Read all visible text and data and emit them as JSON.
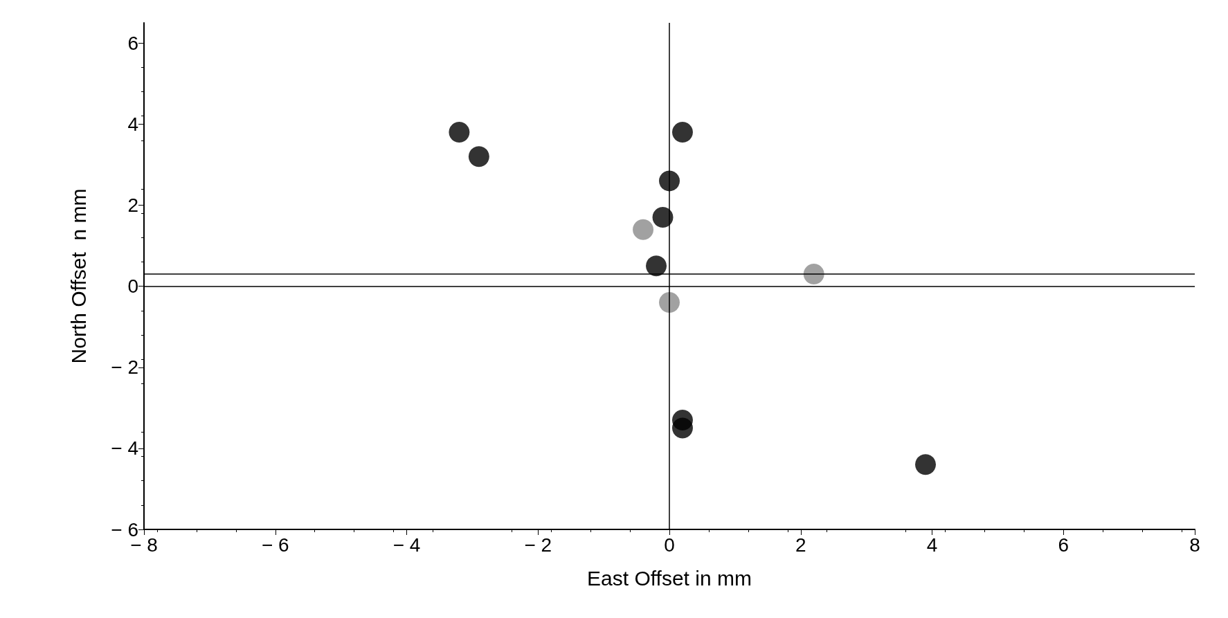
{
  "chart_data": {
    "type": "scatter",
    "xlabel": "East Offset in mm",
    "ylabel": "North Offset  n mm",
    "xlim": [
      -8,
      8
    ],
    "ylim": [
      -6,
      6.5
    ],
    "xticks": [
      -8,
      -6,
      -4,
      -2,
      0,
      2,
      4,
      6,
      8
    ],
    "yticks": [
      -6,
      -4,
      -2,
      0,
      2,
      4,
      6
    ],
    "grid": false,
    "marker": "circle",
    "series": [
      {
        "color": "#000000",
        "x": [
          -3.2,
          -2.9,
          0.2,
          0.0,
          -0.1,
          -0.2,
          0.2,
          0.2,
          3.9
        ],
        "values": [
          3.8,
          3.2,
          3.8,
          2.6,
          1.7,
          0.5,
          -3.3,
          -3.5,
          -4.4
        ]
      },
      {
        "color": "#8a8a8a",
        "x": [
          -0.4,
          2.2,
          0.0
        ],
        "values": [
          1.4,
          0.3,
          -0.4
        ]
      }
    ],
    "ref_lines": [
      {
        "axis": "x",
        "value": 0
      },
      {
        "axis": "y",
        "value": 0
      },
      {
        "axis": "y",
        "value": 0.3
      }
    ]
  }
}
